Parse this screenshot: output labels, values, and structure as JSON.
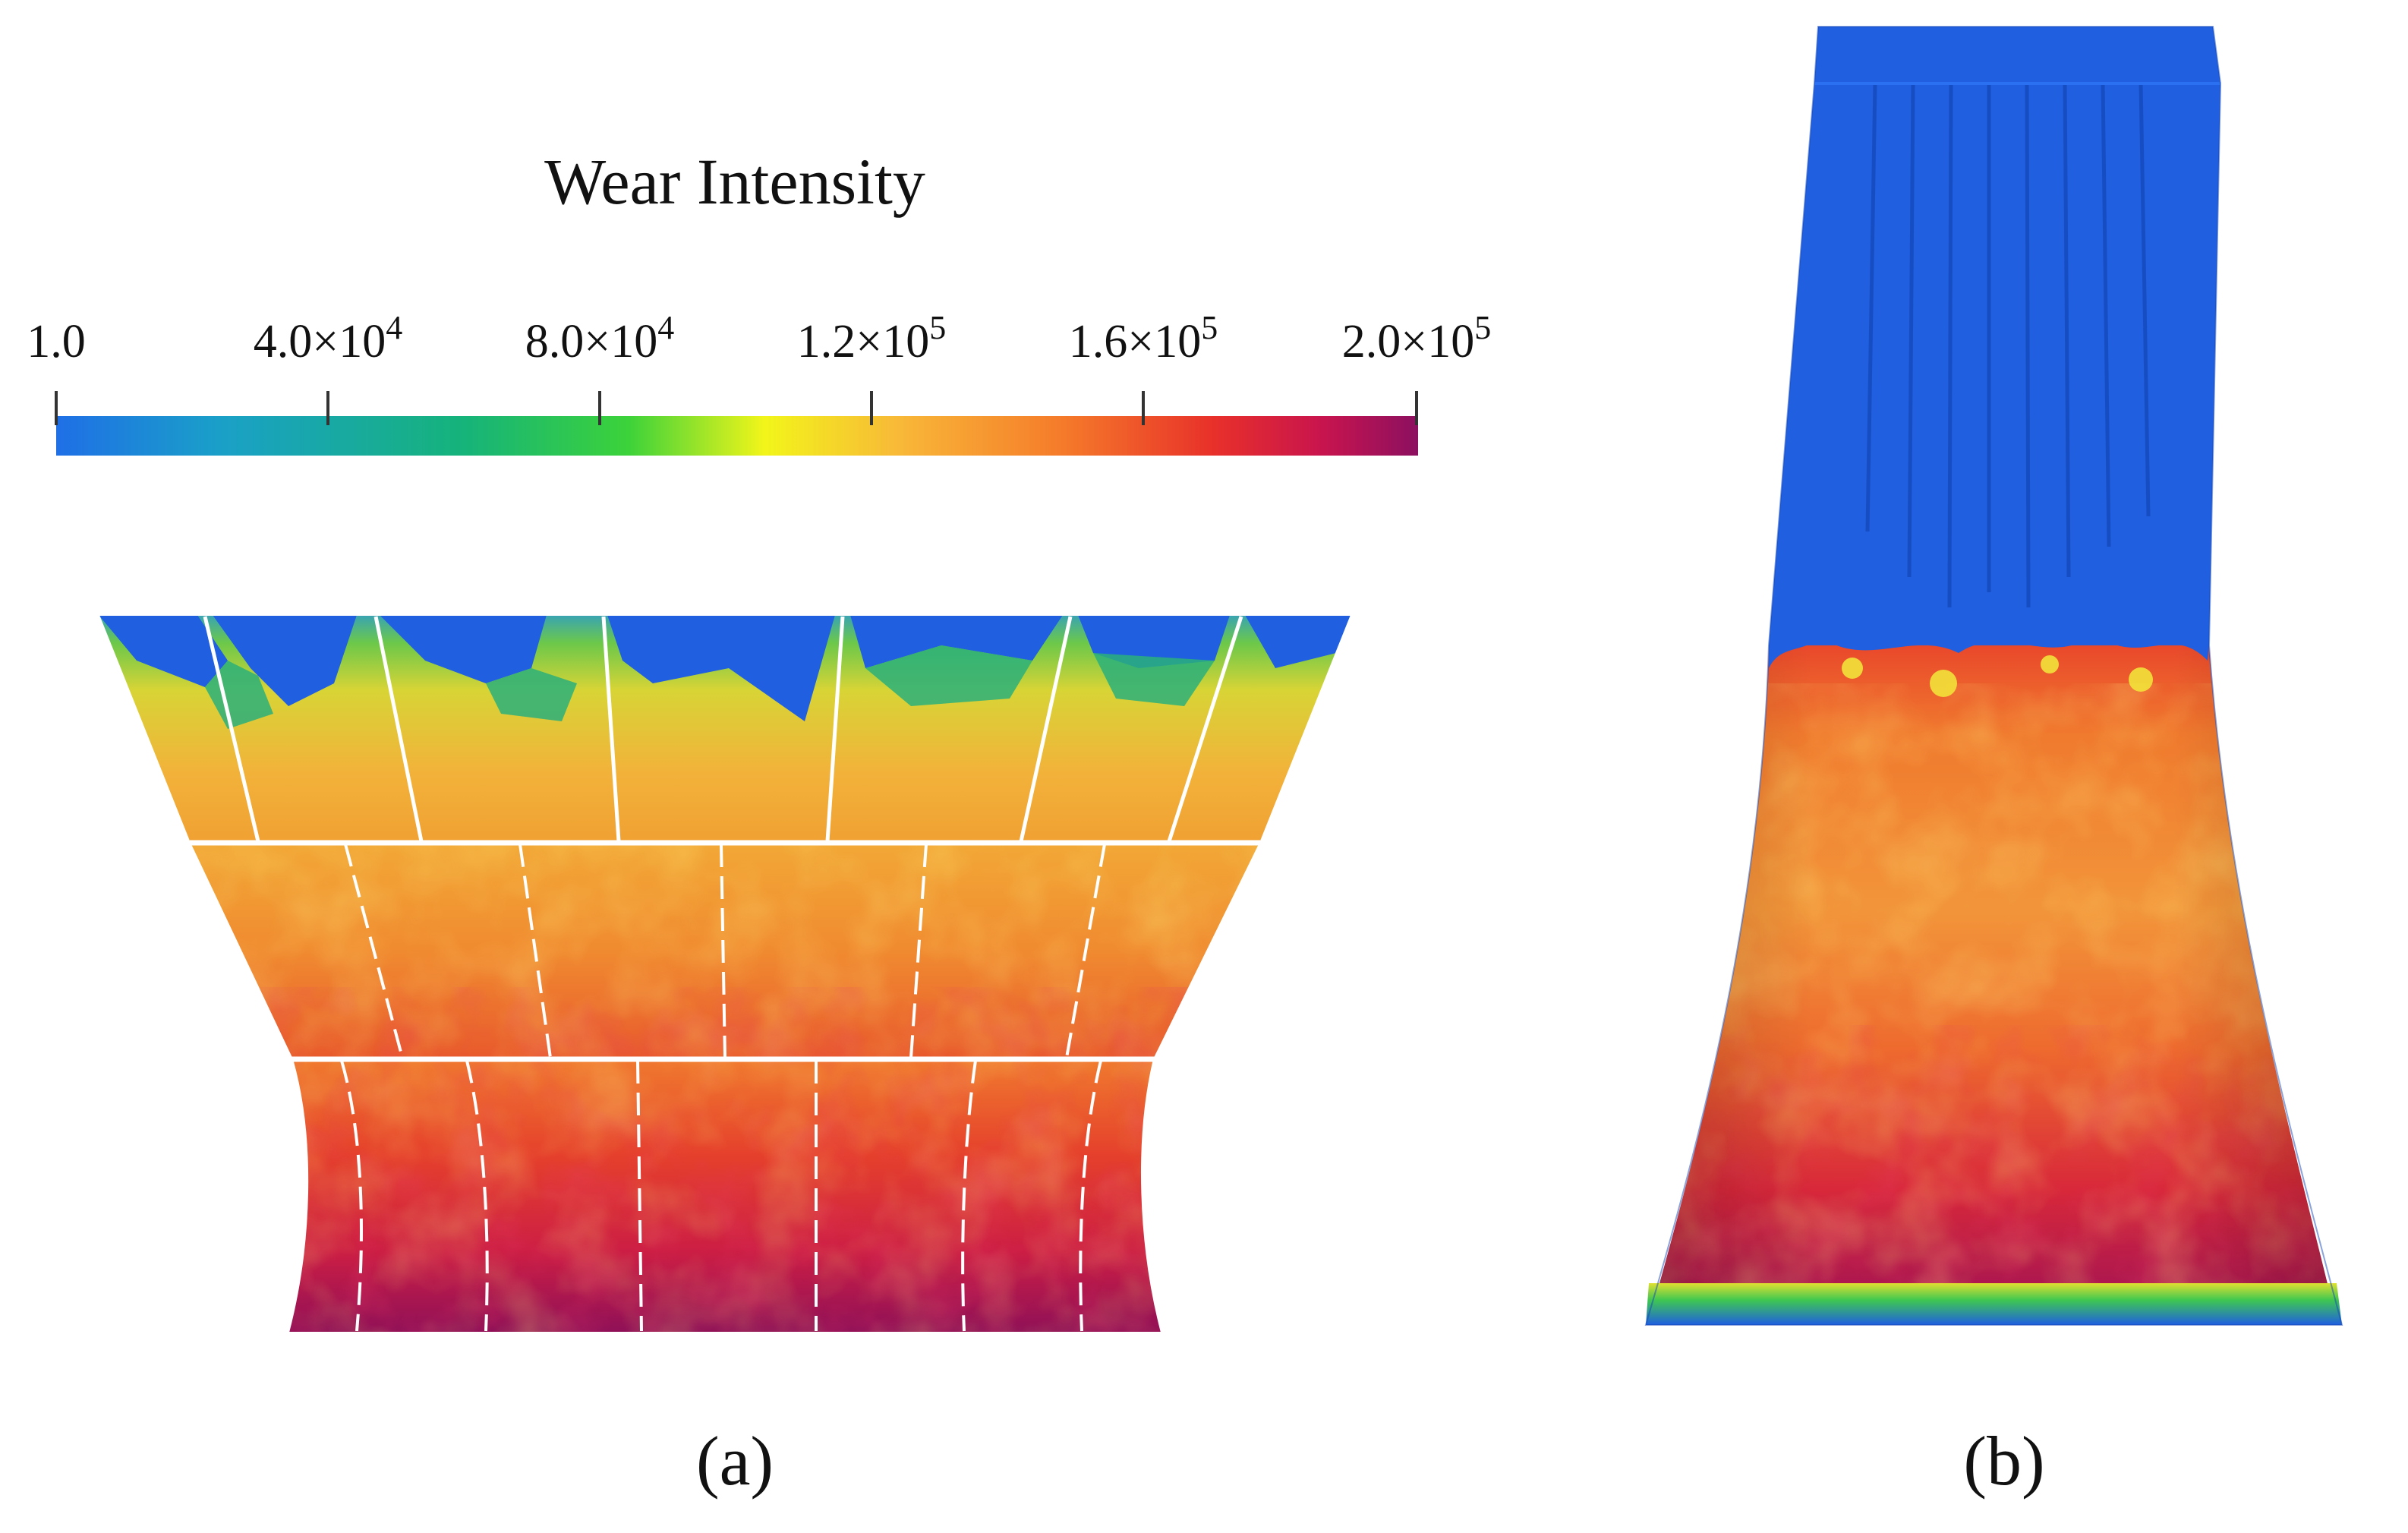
{
  "legend": {
    "title": "Wear Intensity",
    "ticks": [
      {
        "mantissa": "1.0",
        "exponent": ""
      },
      {
        "mantissa": "4.0×10",
        "exponent": "4"
      },
      {
        "mantissa": "8.0×10",
        "exponent": "4"
      },
      {
        "mantissa": "1.2×10",
        "exponent": "5"
      },
      {
        "mantissa": "1.6×10",
        "exponent": "5"
      },
      {
        "mantissa": "2.0×10",
        "exponent": "5"
      }
    ],
    "colormap": [
      "#1f6fe6",
      "#1aa0c8",
      "#16b37a",
      "#3cd23a",
      "#f2f51a",
      "#f8b838",
      "#f57a2a",
      "#e8302a",
      "#c8144e",
      "#8c1060"
    ]
  },
  "panels": {
    "a_label": "(a)",
    "b_label": "(b)"
  },
  "colors": {
    "low": "#1f5fe0",
    "mid": "#f0b030",
    "high": "#e0342a",
    "max": "#8e1058"
  }
}
